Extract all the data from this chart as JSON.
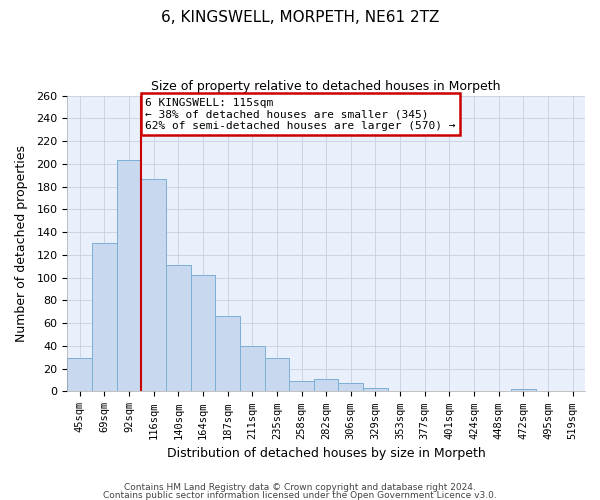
{
  "title": "6, KINGSWELL, MORPETH, NE61 2TZ",
  "subtitle": "Size of property relative to detached houses in Morpeth",
  "xlabel": "Distribution of detached houses by size in Morpeth",
  "ylabel": "Number of detached properties",
  "bar_labels": [
    "45sqm",
    "69sqm",
    "92sqm",
    "116sqm",
    "140sqm",
    "164sqm",
    "187sqm",
    "211sqm",
    "235sqm",
    "258sqm",
    "282sqm",
    "306sqm",
    "329sqm",
    "353sqm",
    "377sqm",
    "401sqm",
    "424sqm",
    "448sqm",
    "472sqm",
    "495sqm",
    "519sqm"
  ],
  "bar_values": [
    29,
    130,
    203,
    187,
    111,
    102,
    66,
    40,
    29,
    9,
    11,
    7,
    3,
    0,
    0,
    0,
    0,
    0,
    2,
    0,
    0
  ],
  "bar_color": "#c8d8ee",
  "bar_edge_color": "#7bafd4",
  "vline_color": "#cc0000",
  "annotation_title": "6 KINGSWELL: 115sqm",
  "annotation_line1": "← 38% of detached houses are smaller (345)",
  "annotation_line2": "62% of semi-detached houses are larger (570) →",
  "annotation_box_color": "#ffffff",
  "annotation_box_edge": "#cc0000",
  "ylim": [
    0,
    260
  ],
  "yticks": [
    0,
    20,
    40,
    60,
    80,
    100,
    120,
    140,
    160,
    180,
    200,
    220,
    240,
    260
  ],
  "footer_line1": "Contains HM Land Registry data © Crown copyright and database right 2024.",
  "footer_line2": "Contains public sector information licensed under the Open Government Licence v3.0.",
  "plot_bg_color": "#eaf0fb",
  "fig_bg_color": "#ffffff",
  "grid_color": "#c8d0e0"
}
